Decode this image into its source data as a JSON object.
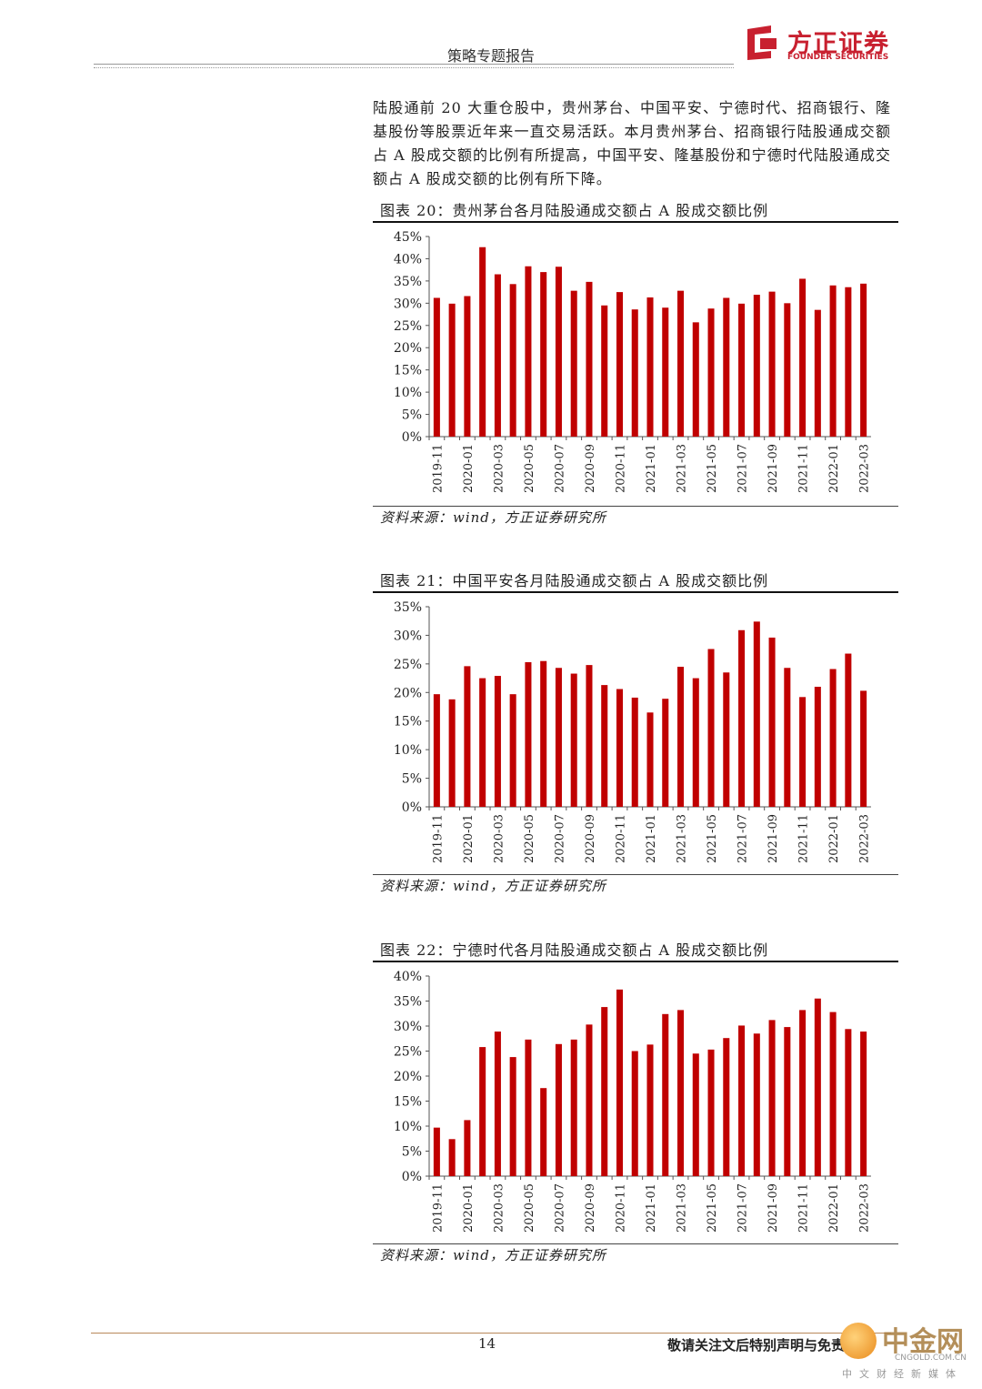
{
  "header": {
    "title": "策略专题报告",
    "logo_cn": "方正证券",
    "logo_en": "FOUNDER SECURITIES"
  },
  "intro": "陆股通前 20 大重仓股中，贵州茅台、中国平安、宁德时代、招商银行、隆基股份等股票近年来一直交易活跃。本月贵州茅台、招商银行陆股通成交额占 A 股成交额的比例有所提高，中国平安、隆基股份和宁德时代陆股通成交额占 A 股成交额的比例有所下降。",
  "charts": [
    {
      "title": "图表 20：贵州茅台各月陆股通成交额占 A 股成交额比例",
      "source": "资料来源：wind，方正证券研究所"
    },
    {
      "title": "图表 21：中国平安各月陆股通成交额占 A 股成交额比例",
      "source": "资料来源：wind，方正证券研究所"
    },
    {
      "title": "图表 22：宁德时代各月陆股通成交额占 A 股成交额比例",
      "source": "资料来源：wind，方正证券研究所"
    }
  ],
  "chart_data": [
    {
      "type": "bar",
      "title": "图表 20：贵州茅台各月陆股通成交额占 A 股成交额比例",
      "categories": [
        "2019-11",
        "2019-12",
        "2020-01",
        "2020-02",
        "2020-03",
        "2020-04",
        "2020-05",
        "2020-06",
        "2020-07",
        "2020-08",
        "2020-09",
        "2020-10",
        "2020-11",
        "2020-12",
        "2021-01",
        "2021-02",
        "2021-03",
        "2021-04",
        "2021-05",
        "2021-06",
        "2021-07",
        "2021-08",
        "2021-09",
        "2021-10",
        "2021-11",
        "2021-12",
        "2022-01",
        "2022-02",
        "2022-03"
      ],
      "tick_labels": [
        "2019-11",
        "2020-01",
        "2020-03",
        "2020-05",
        "2020-07",
        "2020-09",
        "2020-11",
        "2021-01",
        "2021-03",
        "2021-05",
        "2021-07",
        "2021-09",
        "2021-11",
        "2022-01",
        "2022-03"
      ],
      "values": [
        31.2,
        29.9,
        31.6,
        42.6,
        36.5,
        34.3,
        38.3,
        37.0,
        38.2,
        32.8,
        34.8,
        29.5,
        32.5,
        28.6,
        31.3,
        29.0,
        32.8,
        25.7,
        28.8,
        31.2,
        29.9,
        31.9,
        32.6,
        30.0,
        35.5,
        28.5,
        34.0,
        33.6,
        34.4
      ],
      "ylim": [
        0,
        45
      ],
      "yticks": [
        "0%",
        "5%",
        "10%",
        "15%",
        "20%",
        "25%",
        "30%",
        "35%",
        "40%",
        "45%"
      ],
      "color": "#c00000",
      "grid": false,
      "legend": "none"
    },
    {
      "type": "bar",
      "title": "图表 21：中国平安各月陆股通成交额占 A 股成交额比例",
      "categories": [
        "2019-11",
        "2019-12",
        "2020-01",
        "2020-02",
        "2020-03",
        "2020-04",
        "2020-05",
        "2020-06",
        "2020-07",
        "2020-08",
        "2020-09",
        "2020-10",
        "2020-11",
        "2020-12",
        "2021-01",
        "2021-02",
        "2021-03",
        "2021-04",
        "2021-05",
        "2021-06",
        "2021-07",
        "2021-08",
        "2021-09",
        "2021-10",
        "2021-11",
        "2021-12",
        "2022-01",
        "2022-02",
        "2022-03"
      ],
      "tick_labels": [
        "2019-11",
        "2020-01",
        "2020-03",
        "2020-05",
        "2020-07",
        "2020-09",
        "2020-11",
        "2021-01",
        "2021-03",
        "2021-05",
        "2021-07",
        "2021-09",
        "2021-11",
        "2022-01",
        "2022-03"
      ],
      "values": [
        19.7,
        18.8,
        24.6,
        22.5,
        22.9,
        19.7,
        25.3,
        25.5,
        24.3,
        23.3,
        24.8,
        21.3,
        20.6,
        19.1,
        16.5,
        18.9,
        24.5,
        22.5,
        27.6,
        23.5,
        30.9,
        32.4,
        29.6,
        24.3,
        19.2,
        21.0,
        24.1,
        26.8,
        20.3
      ],
      "ylim": [
        0,
        35
      ],
      "yticks": [
        "0%",
        "5%",
        "10%",
        "15%",
        "20%",
        "25%",
        "30%",
        "35%"
      ],
      "color": "#c00000",
      "grid": false,
      "legend": "none"
    },
    {
      "type": "bar",
      "title": "图表 22：宁德时代各月陆股通成交额占 A 股成交额比例",
      "categories": [
        "2019-11",
        "2019-12",
        "2020-01",
        "2020-02",
        "2020-03",
        "2020-04",
        "2020-05",
        "2020-06",
        "2020-07",
        "2020-08",
        "2020-09",
        "2020-10",
        "2020-11",
        "2020-12",
        "2021-01",
        "2021-02",
        "2021-03",
        "2021-04",
        "2021-05",
        "2021-06",
        "2021-07",
        "2021-08",
        "2021-09",
        "2021-10",
        "2021-11",
        "2021-12",
        "2022-01",
        "2022-02",
        "2022-03"
      ],
      "tick_labels": [
        "2019-11",
        "2020-01",
        "2020-03",
        "2020-05",
        "2020-07",
        "2020-09",
        "2020-11",
        "2021-01",
        "2021-03",
        "2021-05",
        "2021-07",
        "2021-09",
        "2021-11",
        "2022-01",
        "2022-03"
      ],
      "values": [
        9.7,
        7.4,
        11.2,
        25.8,
        28.9,
        23.8,
        27.3,
        17.6,
        26.4,
        27.3,
        30.3,
        33.8,
        37.3,
        25.0,
        26.3,
        32.4,
        33.2,
        24.5,
        25.3,
        27.6,
        30.1,
        28.5,
        31.2,
        29.8,
        33.2,
        35.5,
        32.8,
        29.4,
        28.9
      ],
      "ylim": [
        0,
        40
      ],
      "yticks": [
        "0%",
        "5%",
        "10%",
        "15%",
        "20%",
        "25%",
        "30%",
        "35%",
        "40%"
      ],
      "color": "#c00000",
      "grid": false,
      "legend": "none"
    }
  ],
  "footer": {
    "page_number": "14",
    "disclaimer": "敬请关注文后特别声明与免责条款"
  },
  "watermark": {
    "text": "中金网",
    "domain": "CNGOLD.COM.CN",
    "subtitle": "中文财经新媒体"
  }
}
